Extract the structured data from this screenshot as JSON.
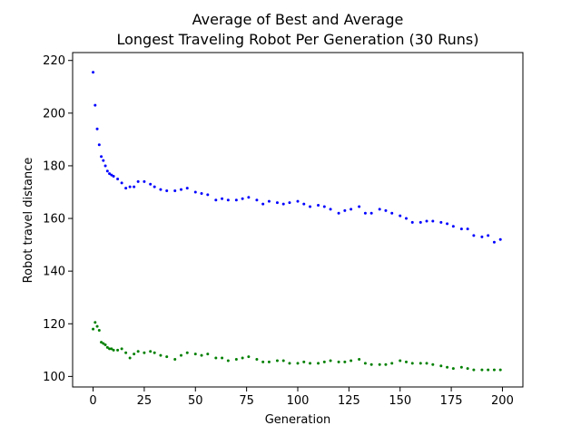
{
  "chart_data": {
    "type": "scatter",
    "title_line1": "Average of Best and Average",
    "title_line2": "Longest Traveling Robot Per Generation (30 Runs)",
    "xlabel": "Generation",
    "ylabel": "Robot travel distance",
    "xlim": [
      -10,
      210
    ],
    "ylim": [
      96,
      223
    ],
    "xticks": [
      0,
      25,
      50,
      75,
      100,
      125,
      150,
      175,
      200
    ],
    "yticks": [
      100,
      120,
      140,
      160,
      180,
      200,
      220
    ],
    "grid": false,
    "legend": "none",
    "series": [
      {
        "color": "#0000ff",
        "x": [
          0,
          1,
          2,
          3,
          4,
          5,
          6,
          7,
          8,
          9,
          10,
          12,
          14,
          16,
          18,
          20,
          22,
          25,
          28,
          30,
          33,
          36,
          40,
          43,
          46,
          50,
          53,
          56,
          60,
          63,
          66,
          70,
          73,
          76,
          80,
          83,
          86,
          90,
          93,
          96,
          100,
          103,
          106,
          110,
          113,
          116,
          120,
          123,
          126,
          130,
          133,
          136,
          140,
          143,
          146,
          150,
          153,
          156,
          160,
          163,
          166,
          170,
          173,
          176,
          180,
          183,
          186,
          190,
          193,
          196,
          199
        ],
        "y": [
          215.5,
          203,
          194,
          188,
          183.5,
          182,
          180,
          178,
          177,
          176.5,
          176,
          175,
          173.5,
          171.5,
          172,
          172,
          174,
          174,
          173,
          172,
          171,
          170.5,
          170.5,
          171,
          171.5,
          170,
          169.5,
          169,
          167,
          167.5,
          167,
          167,
          167.5,
          168,
          167,
          165.5,
          166.5,
          166,
          165.5,
          166,
          166.5,
          165.5,
          164.5,
          165,
          164.5,
          163.5,
          162,
          163,
          163.5,
          164.5,
          162,
          162,
          163.5,
          163,
          162,
          161,
          160,
          158.5,
          158.5,
          159,
          159,
          158.5,
          158,
          157,
          156,
          156,
          153.5,
          153,
          153.5,
          151,
          152
        ]
      },
      {
        "color": "#008000",
        "x": [
          0,
          1,
          2,
          3,
          4,
          5,
          6,
          7,
          8,
          9,
          10,
          12,
          14,
          16,
          18,
          20,
          22,
          25,
          28,
          30,
          33,
          36,
          40,
          43,
          46,
          50,
          53,
          56,
          60,
          63,
          66,
          70,
          73,
          76,
          80,
          83,
          86,
          90,
          93,
          96,
          100,
          103,
          106,
          110,
          113,
          116,
          120,
          123,
          126,
          130,
          133,
          136,
          140,
          143,
          146,
          150,
          153,
          156,
          160,
          163,
          166,
          170,
          173,
          176,
          180,
          183,
          186,
          190,
          193,
          196,
          199
        ],
        "y": [
          118,
          120.5,
          119,
          117.5,
          113,
          112.5,
          112,
          111,
          110.5,
          110.5,
          110,
          110,
          110.5,
          109,
          107,
          108.5,
          109.5,
          109,
          109.5,
          109,
          108,
          107.5,
          106.5,
          108,
          109,
          108.5,
          108,
          108.5,
          107,
          107,
          106,
          106.5,
          107,
          107.5,
          106.5,
          105.5,
          105.5,
          106,
          106,
          105,
          105,
          105.5,
          105,
          105,
          105.5,
          106,
          105.5,
          105.5,
          106,
          106.5,
          105,
          104.5,
          104.5,
          104.5,
          105,
          106,
          105.5,
          105,
          105,
          105,
          104.5,
          104,
          103.5,
          103,
          103.5,
          103,
          102.5,
          102.5,
          102.5,
          102.5,
          102.5
        ]
      }
    ]
  }
}
